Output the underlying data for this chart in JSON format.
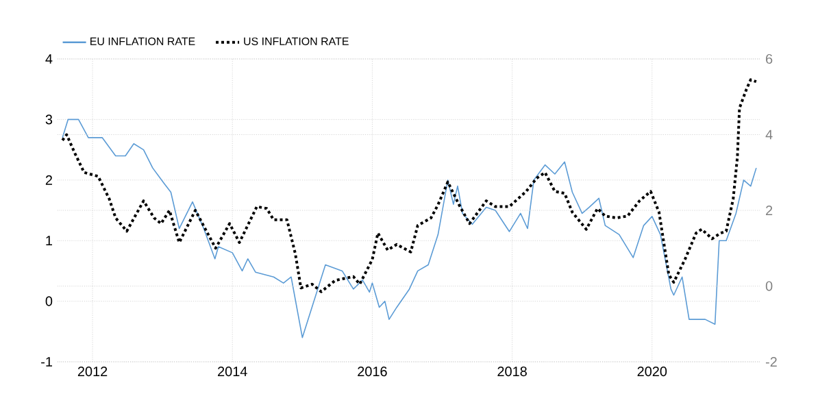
{
  "chart_data": {
    "type": "line",
    "series": [
      {
        "name": "EU INFLATION RATE",
        "color": "#5b9bd5",
        "line_style": "solid",
        "axis": "y",
        "x": [
          2011.57,
          2011.65,
          2011.8,
          2011.94,
          2012.14,
          2012.33,
          2012.47,
          2012.59,
          2012.73,
          2012.86,
          2013.02,
          2013.12,
          2013.24,
          2013.43,
          2013.59,
          2013.75,
          2013.8,
          2014.0,
          2014.14,
          2014.22,
          2014.33,
          2014.59,
          2014.73,
          2014.84,
          2015.0,
          2015.33,
          2015.57,
          2015.73,
          2015.86,
          2015.96,
          2016.0,
          2016.1,
          2016.18,
          2016.24,
          2016.35,
          2016.53,
          2016.65,
          2016.8,
          2016.94,
          2017.08,
          2017.16,
          2017.22,
          2017.29,
          2017.43,
          2017.63,
          2017.76,
          2017.96,
          2018.12,
          2018.22,
          2018.31,
          2018.47,
          2018.61,
          2018.75,
          2018.86,
          2019.0,
          2019.1,
          2019.24,
          2019.33,
          2019.53,
          2019.73,
          2019.88,
          2020.0,
          2020.12,
          2020.27,
          2020.31,
          2020.43,
          2020.53,
          2020.76,
          2020.9,
          2020.96,
          2021.06,
          2021.2,
          2021.31,
          2021.41,
          2021.49
        ],
        "values": [
          2.7,
          3.0,
          3.0,
          2.7,
          2.7,
          2.4,
          2.4,
          2.6,
          2.5,
          2.2,
          1.95,
          1.8,
          1.2,
          1.64,
          1.2,
          0.7,
          0.9,
          0.8,
          0.5,
          0.7,
          0.48,
          0.4,
          0.3,
          0.4,
          -0.6,
          0.6,
          0.5,
          0.2,
          0.35,
          0.15,
          0.3,
          -0.1,
          0.0,
          -0.3,
          -0.1,
          0.2,
          0.5,
          0.6,
          1.1,
          2.0,
          1.6,
          1.9,
          1.45,
          1.27,
          1.55,
          1.5,
          1.15,
          1.45,
          1.2,
          2.0,
          2.25,
          2.1,
          2.3,
          1.8,
          1.45,
          1.55,
          1.7,
          1.25,
          1.1,
          0.72,
          1.25,
          1.4,
          1.1,
          0.2,
          0.1,
          0.4,
          -0.3,
          -0.3,
          -0.38,
          1.0,
          1.0,
          1.45,
          2.0,
          1.9,
          2.2
        ]
      },
      {
        "name": "US INFLATION RATE",
        "color": "#000000",
        "line_style": "dotted",
        "axis": "y2",
        "x": [
          2011.57,
          2011.63,
          2011.75,
          2011.88,
          2012.08,
          2012.24,
          2012.33,
          2012.49,
          2012.73,
          2012.88,
          2012.98,
          2013.1,
          2013.24,
          2013.47,
          2013.76,
          2013.96,
          2014.1,
          2014.35,
          2014.49,
          2014.59,
          2014.78,
          2014.9,
          2014.98,
          2015.14,
          2015.27,
          2015.47,
          2015.73,
          2015.82,
          2016.0,
          2016.08,
          2016.22,
          2016.35,
          2016.55,
          2016.65,
          2016.84,
          2016.94,
          2017.08,
          2017.24,
          2017.39,
          2017.63,
          2017.76,
          2017.96,
          2018.2,
          2018.35,
          2018.47,
          2018.61,
          2018.75,
          2018.86,
          2019.06,
          2019.22,
          2019.33,
          2019.49,
          2019.65,
          2019.82,
          2019.98,
          2020.1,
          2020.24,
          2020.31,
          2020.47,
          2020.63,
          2020.71,
          2020.86,
          2020.98,
          2021.06,
          2021.16,
          2021.22,
          2021.25,
          2021.35,
          2021.41,
          2021.49
        ],
        "values": [
          3.85,
          4.0,
          3.5,
          3.0,
          2.9,
          2.3,
          1.8,
          1.45,
          2.25,
          1.8,
          1.65,
          2.0,
          1.15,
          2.0,
          1.0,
          1.65,
          1.15,
          2.1,
          2.05,
          1.75,
          1.75,
          0.85,
          -0.05,
          0.05,
          -0.15,
          0.15,
          0.25,
          0.05,
          0.7,
          1.4,
          0.95,
          1.1,
          0.9,
          1.6,
          1.8,
          2.15,
          2.75,
          2.15,
          1.65,
          2.25,
          2.1,
          2.1,
          2.5,
          2.85,
          3.0,
          2.5,
          2.45,
          1.95,
          1.5,
          2.05,
          1.85,
          1.8,
          1.85,
          2.25,
          2.5,
          1.95,
          0.3,
          0.1,
          0.7,
          1.4,
          1.5,
          1.25,
          1.4,
          1.45,
          2.3,
          3.4,
          4.7,
          5.2,
          5.45,
          5.4
        ]
      }
    ],
    "xlim": [
      2011.5,
      2021.55
    ],
    "xticks": [
      2012,
      2014,
      2016,
      2018,
      2020
    ],
    "ylim": [
      -1,
      4
    ],
    "yticks": [
      -1,
      0,
      1,
      2,
      3,
      4
    ],
    "y2lim": [
      -2,
      6
    ],
    "y2ticks": [
      -2,
      0,
      2,
      4,
      6
    ],
    "grid": true,
    "legend": "top left",
    "marker": "none"
  }
}
